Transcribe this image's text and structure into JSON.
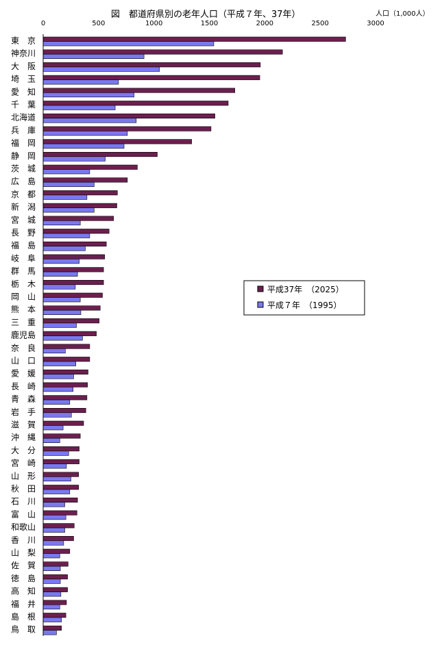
{
  "chart_data": {
    "type": "bar",
    "orientation": "horizontal",
    "title": "図　都道府県別の老年人口（平成７年、37年）",
    "xlabel": "",
    "ylabel": "",
    "unit_label": "人口（1,000人）",
    "xlim": [
      0,
      3000
    ],
    "xticks": [
      "0",
      "500",
      "1000",
      "1500",
      "2000",
      "2500",
      "3000"
    ],
    "grid": false,
    "legend_position": "right",
    "categories": [
      "東　京",
      "神奈川",
      "大　阪",
      "埼　玉",
      "愛　知",
      "千　葉",
      "北海道",
      "兵　庫",
      "福　岡",
      "静　岡",
      "茨　城",
      "広　島",
      "京　都",
      "新　潟",
      "宮　城",
      "長　野",
      "福　島",
      "岐　阜",
      "群　馬",
      "栃　木",
      "岡　山",
      "熊　本",
      "三　重",
      "鹿児島",
      "奈　良",
      "山　口",
      "愛　媛",
      "長　崎",
      "青　森",
      "岩　手",
      "滋　賀",
      "沖　縄",
      "大　分",
      "宮　崎",
      "山　形",
      "秋　田",
      "石　川",
      "富　山",
      "和歌山",
      "香　川",
      "山　梨",
      "佐　賀",
      "徳　島",
      "高　知",
      "福　井",
      "島　根",
      "鳥　取"
    ],
    "series": [
      {
        "name": "平成37年　（2025）",
        "color": "#6b1f4f",
        "values": [
          2730,
          2160,
          1960,
          1955,
          1730,
          1670,
          1550,
          1515,
          1340,
          1030,
          850,
          760,
          670,
          665,
          635,
          595,
          570,
          555,
          545,
          545,
          535,
          515,
          505,
          480,
          420,
          420,
          405,
          400,
          395,
          385,
          365,
          335,
          325,
          325,
          320,
          320,
          310,
          305,
          280,
          275,
          240,
          225,
          220,
          220,
          210,
          205,
          165
        ]
      },
      {
        "name": "平成７年　（1995）",
        "color": "#7a78f0",
        "values": [
          1540,
          910,
          1050,
          680,
          820,
          650,
          840,
          760,
          730,
          560,
          420,
          460,
          395,
          460,
          335,
          420,
          380,
          325,
          310,
          290,
          335,
          340,
          300,
          355,
          200,
          295,
          275,
          270,
          240,
          255,
          180,
          150,
          230,
          210,
          250,
          240,
          195,
          205,
          195,
          185,
          150,
          155,
          155,
          160,
          150,
          165,
          120
        ]
      }
    ]
  }
}
